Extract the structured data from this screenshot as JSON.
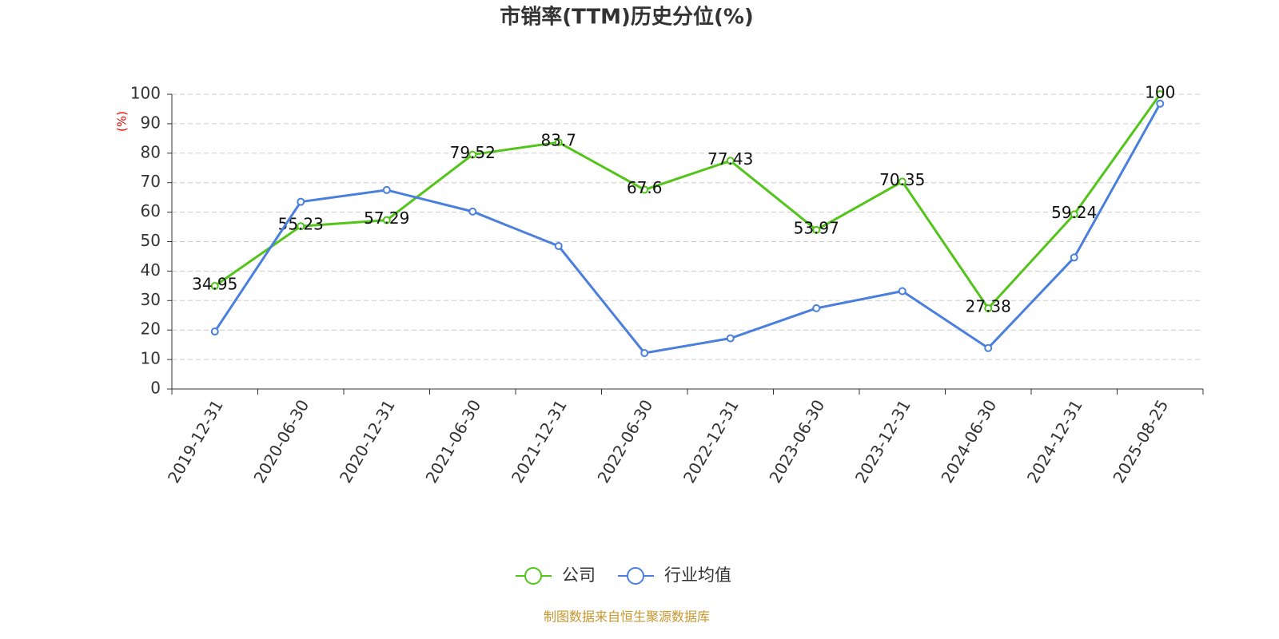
{
  "chart_data": {
    "type": "line",
    "title": "市销率(TTM)历史分位(%)",
    "y_label": "(%)",
    "categories": [
      "2019-12-31",
      "2020-06-30",
      "2020-12-31",
      "2021-06-30",
      "2021-12-31",
      "2022-06-30",
      "2022-12-31",
      "2023-06-30",
      "2023-12-31",
      "2024-06-30",
      "2024-12-31",
      "2025-08-25"
    ],
    "series": [
      {
        "name": "公司",
        "color": "#52c41a",
        "values": [
          34.95,
          55.23,
          57.29,
          79.52,
          83.7,
          67.6,
          77.43,
          53.97,
          70.35,
          27.38,
          59.24,
          100
        ]
      },
      {
        "name": "行业均值",
        "color": "#4a7fdd",
        "values": [
          19.5,
          63.5,
          67.5,
          60.2,
          48.5,
          12.2,
          17.2,
          27.4,
          33.2,
          13.9,
          44.6,
          96.8
        ]
      }
    ],
    "ylim": [
      0,
      100
    ],
    "yticks": [
      0,
      10,
      20,
      30,
      40,
      50,
      60,
      70,
      80,
      90,
      100
    ],
    "grid": true,
    "legend": "bottom",
    "source": "制图数据来自恒生聚源数据库"
  }
}
